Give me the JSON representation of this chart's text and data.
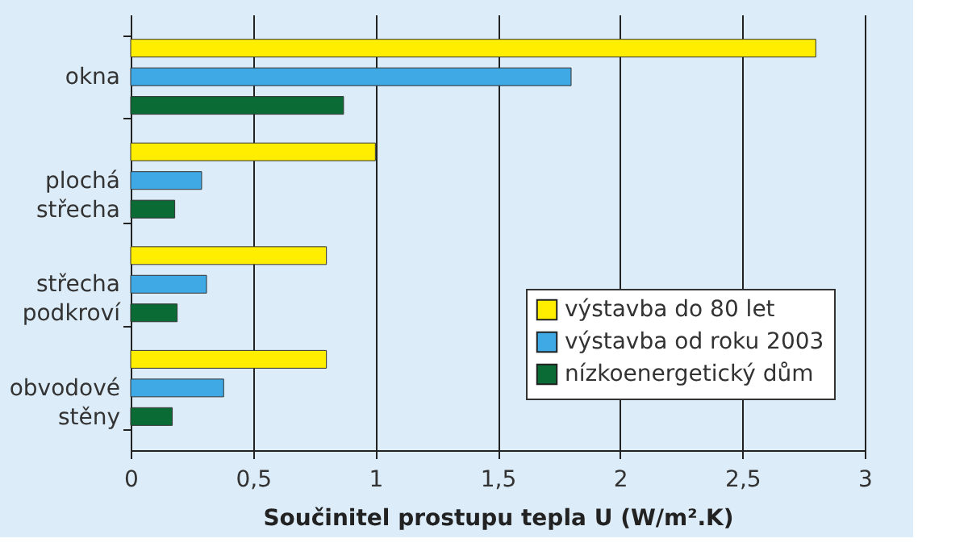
{
  "chart_data": {
    "type": "bar",
    "orientation": "horizontal",
    "xlabel": "Součinitel prostupu tepla U (W/m².K)",
    "categories": [
      "okna",
      "plochá střecha",
      "střecha podkroví",
      "obvodové stěny"
    ],
    "series": [
      {
        "name": "výstavba do 80 let",
        "color": "#ffee00",
        "values": [
          2.8,
          1.0,
          0.8,
          0.8
        ]
      },
      {
        "name": "výstavba od roku 2003",
        "color": "#3fa9e6",
        "values": [
          1.8,
          0.29,
          0.31,
          0.38
        ]
      },
      {
        "name": "nízkoenergetický dům",
        "color": "#0a6b35",
        "values": [
          0.87,
          0.18,
          0.19,
          0.17
        ]
      }
    ],
    "xlim": [
      0,
      3
    ],
    "xticks": [
      {
        "value": 0,
        "label": "0"
      },
      {
        "value": 0.5,
        "label": "0,5"
      },
      {
        "value": 1,
        "label": "1"
      },
      {
        "value": 1.5,
        "label": "1,5"
      },
      {
        "value": 2,
        "label": "2"
      },
      {
        "value": 2.5,
        "label": "2,5"
      },
      {
        "value": 3,
        "label": "3"
      }
    ],
    "grid": "x",
    "legend": "right"
  }
}
